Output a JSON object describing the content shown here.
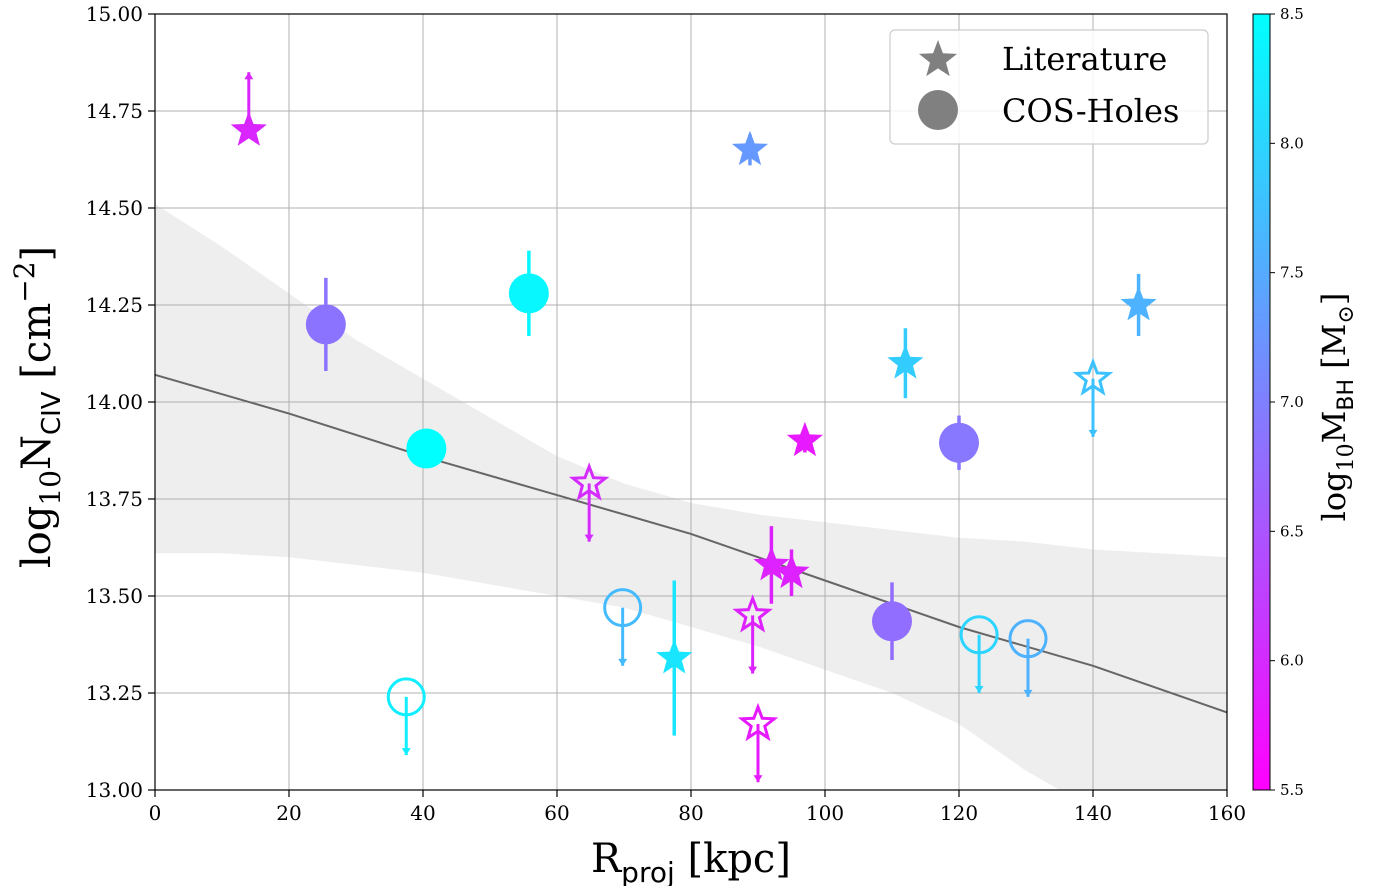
{
  "chart_data": {
    "type": "scatter",
    "xlabel": {
      "main": "R",
      "sub": "proj",
      "rest": " [kpc]"
    },
    "ylabel": {
      "pre": "log",
      "pre_sub": "10",
      "main": "N",
      "sub": "CIV",
      "rest": " [cm",
      "sup": "−2",
      "close": "]"
    },
    "colorbar_label": {
      "pre": "log",
      "pre_sub": "10",
      "main": "M",
      "sub": "BH",
      "rest": " [M",
      "odot": "⊙",
      "close": "]"
    },
    "xlim": [
      0,
      160
    ],
    "ylim": [
      13.0,
      15.0
    ],
    "grid": true,
    "x_ticks": [
      "0",
      "20",
      "40",
      "60",
      "80",
      "100",
      "120",
      "140",
      "160"
    ],
    "y_ticks": [
      "13.00",
      "13.25",
      "13.50",
      "13.75",
      "14.00",
      "14.25",
      "14.50",
      "14.75",
      "15.00"
    ],
    "colorbar": {
      "range": [
        5.5,
        8.5
      ],
      "ticks": [
        "5.5",
        "6.0",
        "6.5",
        "7.0",
        "7.5",
        "8.0",
        "8.5"
      ],
      "color_low": "#ff00ff",
      "color_high": "#00ffff"
    },
    "legend": {
      "position": "top-right",
      "entries": [
        {
          "label": "Literature",
          "marker": "star"
        },
        {
          "label": "COS-Holes",
          "marker": "circle"
        }
      ]
    },
    "fit_line": {
      "color": "#666666",
      "points": [
        [
          0,
          14.07
        ],
        [
          20,
          13.97
        ],
        [
          40,
          13.86
        ],
        [
          60,
          13.76
        ],
        [
          80,
          13.66
        ],
        [
          100,
          13.54
        ],
        [
          120,
          13.42
        ],
        [
          140,
          13.32
        ],
        [
          160,
          13.2
        ]
      ]
    },
    "confidence_band": {
      "color": "#eeeeee",
      "upper": [
        [
          0,
          14.51
        ],
        [
          10,
          14.4
        ],
        [
          20,
          14.28
        ],
        [
          30,
          14.16
        ],
        [
          40,
          14.06
        ],
        [
          50,
          13.96
        ],
        [
          60,
          13.86
        ],
        [
          70,
          13.79
        ],
        [
          80,
          13.74
        ],
        [
          90,
          13.71
        ],
        [
          100,
          13.69
        ],
        [
          110,
          13.67
        ],
        [
          120,
          13.65
        ],
        [
          130,
          13.64
        ],
        [
          140,
          13.62
        ],
        [
          150,
          13.61
        ],
        [
          160,
          13.6
        ]
      ],
      "lower": [
        [
          160,
          12.98
        ],
        [
          150,
          12.98
        ],
        [
          140,
          12.98
        ],
        [
          135,
          12.98
        ],
        [
          130,
          13.05
        ],
        [
          120,
          13.17
        ],
        [
          110,
          13.25
        ],
        [
          100,
          13.31
        ],
        [
          90,
          13.37
        ],
        [
          80,
          13.42
        ],
        [
          70,
          13.47
        ],
        [
          60,
          13.5
        ],
        [
          50,
          13.53
        ],
        [
          40,
          13.56
        ],
        [
          30,
          13.58
        ],
        [
          20,
          13.6
        ],
        [
          10,
          13.61
        ],
        [
          0,
          13.61
        ]
      ]
    },
    "cos_holes": [
      {
        "x": 25.5,
        "y": 14.2,
        "mbh": 6.85,
        "err": [
          0.12,
          0.12
        ],
        "type": "detection"
      },
      {
        "x": 40.5,
        "y": 13.88,
        "mbh": 8.5,
        "err": [
          0,
          0
        ],
        "type": "detection"
      },
      {
        "x": 55.8,
        "y": 14.28,
        "mbh": 8.4,
        "err": [
          0.11,
          0.11
        ],
        "type": "detection"
      },
      {
        "x": 110.0,
        "y": 13.435,
        "mbh": 6.8,
        "err": [
          0.1,
          0.1
        ],
        "type": "detection"
      },
      {
        "x": 120.0,
        "y": 13.895,
        "mbh": 6.9,
        "err": [
          0.07,
          0.07
        ],
        "type": "detection"
      },
      {
        "x": 37.5,
        "y": 13.24,
        "mbh": 8.3,
        "type": "upper_limit"
      },
      {
        "x": 69.8,
        "y": 13.47,
        "mbh": 7.7,
        "type": "upper_limit"
      },
      {
        "x": 123.0,
        "y": 13.4,
        "mbh": 8.0,
        "type": "upper_limit"
      },
      {
        "x": 130.3,
        "y": 13.39,
        "mbh": 7.6,
        "type": "upper_limit"
      }
    ],
    "literature": [
      {
        "x": 14.0,
        "y": 14.7,
        "mbh": 5.95,
        "type": "lower_limit"
      },
      {
        "x": 88.8,
        "y": 14.65,
        "mbh": 7.3,
        "err": [
          0.04,
          0.04
        ],
        "type": "detection"
      },
      {
        "x": 146.8,
        "y": 14.25,
        "mbh": 7.6,
        "err": [
          0.08,
          0.08
        ],
        "type": "detection"
      },
      {
        "x": 112.0,
        "y": 14.1,
        "mbh": 7.9,
        "err": [
          0.09,
          0.09
        ],
        "type": "detection"
      },
      {
        "x": 97.0,
        "y": 13.9,
        "mbh": 5.8,
        "err": [
          0.03,
          0.03
        ],
        "type": "detection"
      },
      {
        "x": 92.0,
        "y": 13.58,
        "mbh": 5.9,
        "err": [
          0.1,
          0.1
        ],
        "type": "detection"
      },
      {
        "x": 95.0,
        "y": 13.56,
        "mbh": 5.9,
        "err": [
          0.06,
          0.06
        ],
        "type": "detection"
      },
      {
        "x": 77.5,
        "y": 13.34,
        "mbh": 8.2,
        "err": [
          0.2,
          0.2
        ],
        "type": "detection"
      },
      {
        "x": 140.0,
        "y": 14.06,
        "mbh": 7.8,
        "type": "upper_limit"
      },
      {
        "x": 64.8,
        "y": 13.79,
        "mbh": 6.0,
        "type": "upper_limit"
      },
      {
        "x": 89.2,
        "y": 13.45,
        "mbh": 5.9,
        "type": "upper_limit"
      },
      {
        "x": 90.0,
        "y": 13.17,
        "mbh": 5.8,
        "type": "upper_limit"
      }
    ]
  }
}
